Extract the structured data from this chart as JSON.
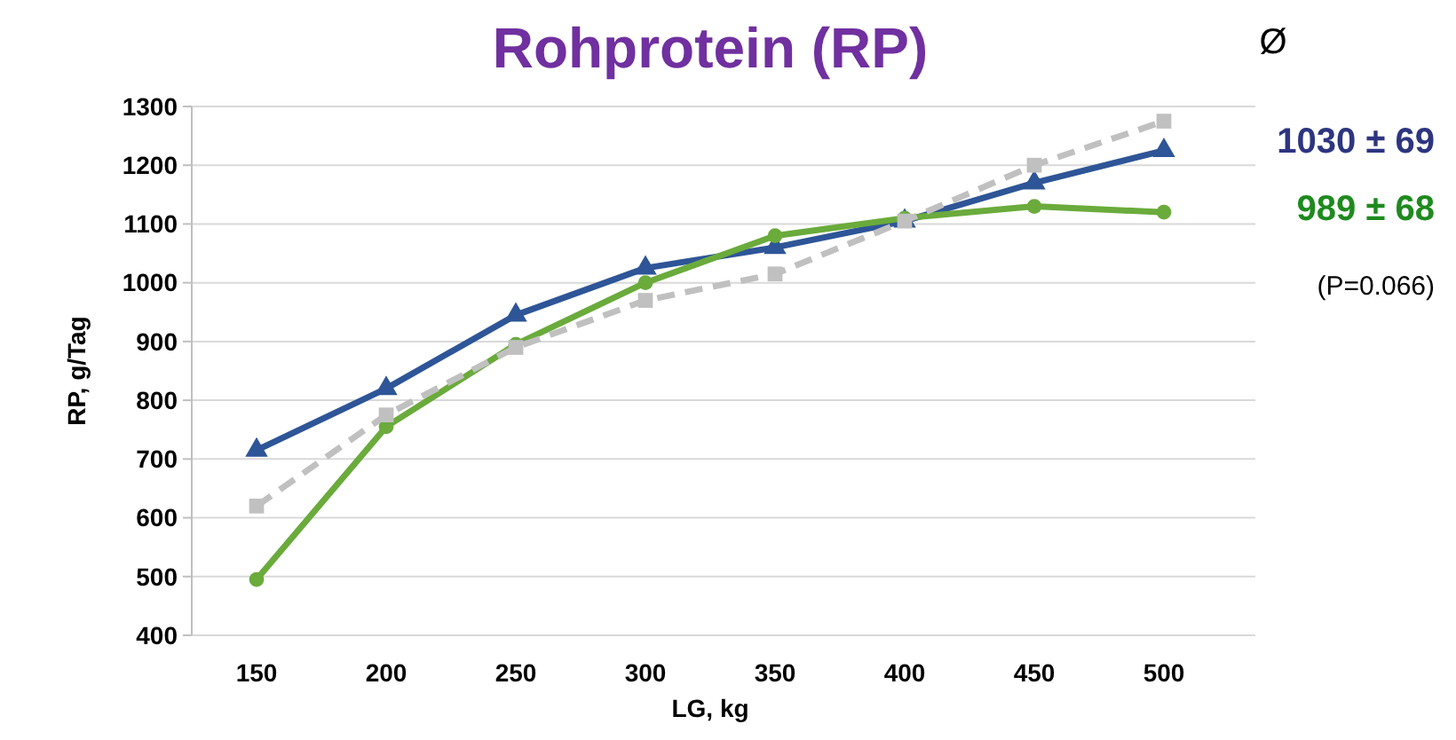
{
  "chart_data": {
    "type": "line",
    "title": "Rohprotein (RP)",
    "xlabel": "LG, kg",
    "ylabel": "RP, g/Tag",
    "categories": [
      "150",
      "200",
      "250",
      "300",
      "350",
      "400",
      "450",
      "500"
    ],
    "series": [
      {
        "color": "#2e5597",
        "marker": "triangle",
        "line_style": "solid",
        "values": [
          715,
          820,
          945,
          1025,
          1060,
          1105,
          1170,
          1225
        ]
      },
      {
        "color": "#6aab3c",
        "marker": "circle",
        "line_style": "solid",
        "values": [
          495,
          755,
          895,
          1000,
          1080,
          1110,
          1130,
          1120
        ]
      },
      {
        "color": "#c0c0c0",
        "marker": "square",
        "line_style": "dashed",
        "values": [
          620,
          775,
          890,
          970,
          1015,
          1105,
          1200,
          1275
        ]
      }
    ],
    "ylim": [
      400,
      1300
    ],
    "yticks": [
      400,
      500,
      600,
      700,
      800,
      900,
      1000,
      1100,
      1200,
      1300
    ],
    "grid": "y",
    "annotations": [
      "Ø",
      "1030 ± 69",
      "989 ± 68",
      "(P=0.066)"
    ]
  }
}
